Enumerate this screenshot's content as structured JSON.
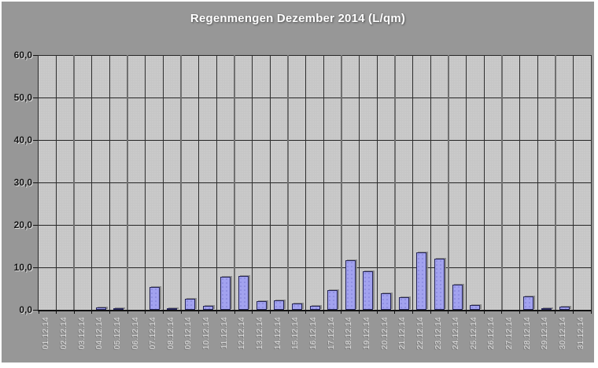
{
  "chart_data": {
    "type": "bar",
    "title": "Regenmengen Dezember 2014 (L/qm)",
    "xlabel": "",
    "ylabel": "",
    "ylim": [
      0,
      60
    ],
    "ytick_labels": [
      "60,0",
      "50,0",
      "40,0",
      "30,0",
      "20,0",
      "10,0",
      "0,0"
    ],
    "grid": "on",
    "legend": "none",
    "categories": [
      "01.12.14",
      "02.12.14",
      "03.12.14",
      "04.12.14",
      "05.12.14",
      "06.12.14",
      "07.12.14",
      "08.12.14",
      "09.12.14",
      "10.12.14",
      "11.12.14",
      "12.12.14",
      "13.12.14",
      "14.12.14",
      "15.12.14",
      "16.12.14",
      "17.12.14",
      "18.12.14",
      "19.12.14",
      "20.12.14",
      "21.12.14",
      "22.12.14",
      "23.12.14",
      "24.12.14",
      "25.12.14",
      "26.12.14",
      "27.12.14",
      "28.12.14",
      "29.12.14",
      "30.12.14",
      "31.12.14"
    ],
    "values": [
      0,
      0,
      0,
      0.5,
      0.3,
      0,
      5.4,
      0.2,
      2.6,
      1.0,
      7.7,
      7.9,
      2.0,
      2.2,
      1.4,
      1.0,
      4.7,
      11.6,
      9.0,
      3.8,
      2.9,
      13.5,
      12.0,
      6.0,
      1.1,
      0,
      0,
      3.2,
      0.3,
      0.8,
      0
    ],
    "colors": {
      "canvas_bg": "#979797",
      "plot_bg": "#c6c6c6",
      "bar_fill": "#a2a2ef",
      "bar_border": "#26265a",
      "bar_shadow": "#808080",
      "gridline": "#333333",
      "axis": "#111111",
      "title_text": "#ffffff",
      "ytick_text": "#151515",
      "xtick_text": "#dedede"
    }
  }
}
